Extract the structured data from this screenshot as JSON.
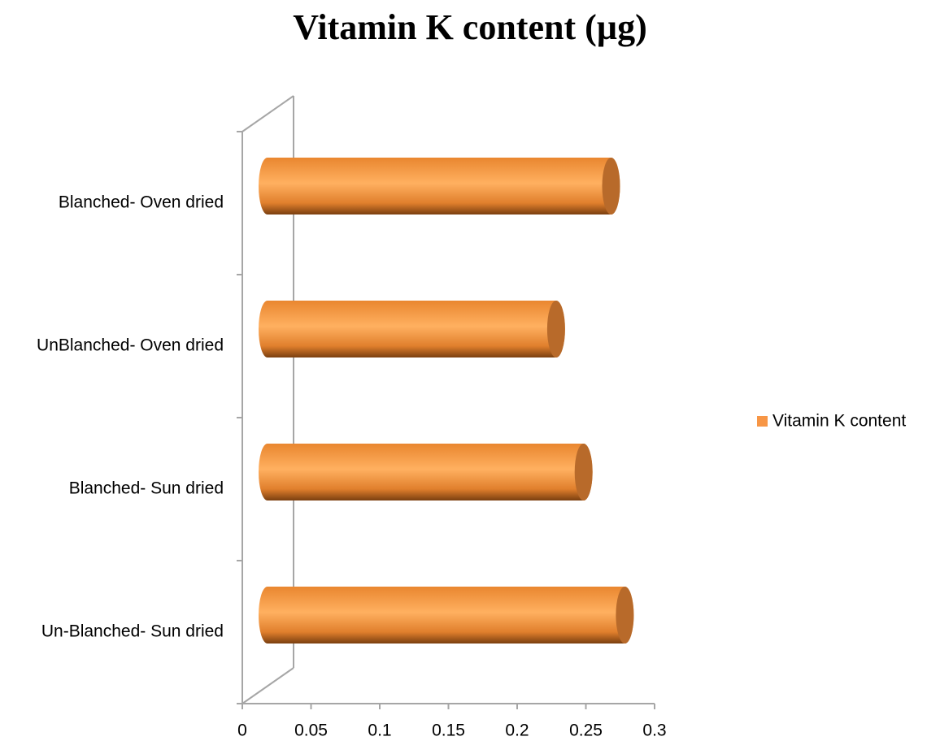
{
  "chart_data": {
    "type": "bar3d_horizontal",
    "title": "Vitamin K content (µg)",
    "categories": [
      "Blanched- Oven dried",
      "UnBlanched- Oven dried",
      "Blanched- Sun dried",
      "Un-Blanched- Sun dried"
    ],
    "series": [
      {
        "name": "Vitamin K content",
        "color": "#f79646",
        "values": [
          0.25,
          0.21,
          0.23,
          0.26
        ]
      }
    ],
    "xlim": [
      0,
      0.3
    ],
    "xticks": [
      0,
      0.05,
      0.1,
      0.15,
      0.2,
      0.25,
      0.3
    ],
    "legend": "right"
  }
}
